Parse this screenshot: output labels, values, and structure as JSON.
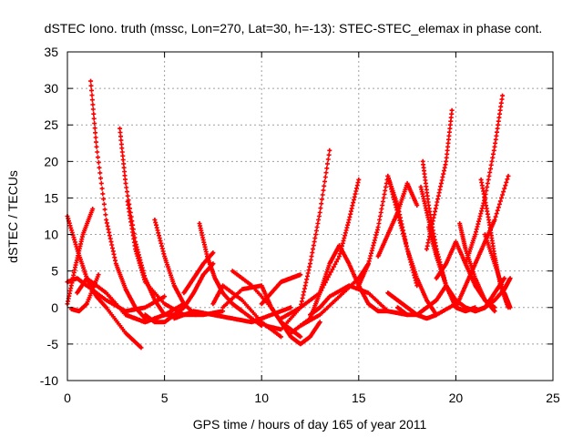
{
  "chart_data": {
    "type": "scatter",
    "title": "dSTEC Iono. truth (mssc, Lon=270, Lat=30, h=-13): STEC-STEC_elemax in phase cont.",
    "xlabel": "GPS time / hours of day 165 of year 2011",
    "ylabel": "dSTEC  / TECUs",
    "xlim": [
      0,
      25
    ],
    "ylim": [
      -10,
      35
    ],
    "xticks": [
      0,
      5,
      10,
      15,
      20,
      25
    ],
    "yticks": [
      -10,
      -5,
      0,
      5,
      10,
      15,
      20,
      25,
      30,
      35
    ],
    "grid": true,
    "marker": "+",
    "color": "#ff0000",
    "series": [
      {
        "x": [
          0.0,
          0.5,
          1.0,
          1.5,
          2.0,
          3.0,
          3.8
        ],
        "y": [
          12.5,
          8.0,
          4.0,
          1.5,
          0.0,
          -3.5,
          -5.5
        ]
      },
      {
        "x": [
          0.0,
          0.4,
          0.8,
          1.3
        ],
        "y": [
          0.5,
          5.5,
          10.0,
          13.5
        ]
      },
      {
        "x": [
          0.0,
          0.5,
          1.0,
          2.0,
          3.0,
          4.0,
          5.0
        ],
        "y": [
          3.5,
          4.0,
          3.0,
          1.0,
          -0.5,
          0.0,
          1.5
        ]
      },
      {
        "x": [
          1.2,
          1.5,
          2.0,
          2.5,
          3.0,
          3.5,
          4.0
        ],
        "y": [
          31.0,
          22.0,
          12.0,
          6.0,
          2.5,
          0.0,
          -1.5
        ]
      },
      {
        "x": [
          0.2,
          0.6,
          1.0,
          1.6
        ],
        "y": [
          -0.2,
          -0.5,
          0.5,
          4.5
        ]
      },
      {
        "x": [
          0.5,
          1.0,
          2.0,
          3.0,
          4.0,
          5.0,
          6.0
        ],
        "y": [
          2.0,
          4.0,
          2.0,
          -1.0,
          -2.0,
          -1.0,
          0.5
        ]
      },
      {
        "x": [
          2.7,
          3.0,
          3.5,
          4.0,
          4.5,
          5.0
        ],
        "y": [
          24.5,
          17.0,
          9.0,
          4.0,
          1.0,
          -1.0
        ]
      },
      {
        "x": [
          3.1,
          3.5,
          4.0,
          5.0,
          6.0
        ],
        "y": [
          14.5,
          8.0,
          3.5,
          0.5,
          -1.0
        ]
      },
      {
        "x": [
          2.0,
          3.0,
          4.0,
          5.0,
          6.0,
          7.0,
          8.0
        ],
        "y": [
          2.0,
          -1.0,
          -2.0,
          -1.0,
          -1.0,
          -1.0,
          -0.5
        ]
      },
      {
        "x": [
          4.5,
          5.0,
          5.5,
          6.0,
          6.6
        ],
        "y": [
          12.0,
          7.0,
          3.0,
          0.5,
          -1.0
        ]
      },
      {
        "x": [
          4.0,
          4.5,
          5.0,
          5.5,
          6.0,
          6.5,
          7.0,
          7.5
        ],
        "y": [
          -1.0,
          -2.0,
          -2.0,
          -1.0,
          0.0,
          2.0,
          4.5,
          6.0
        ]
      },
      {
        "x": [
          6.0,
          6.5,
          7.0,
          7.5
        ],
        "y": [
          2.0,
          4.0,
          6.0,
          7.5
        ]
      },
      {
        "x": [
          6.8,
          7.2,
          7.6,
          8.0,
          8.5,
          9.0,
          10.0
        ],
        "y": [
          11.5,
          7.0,
          4.0,
          2.0,
          0.5,
          -0.5,
          -2.5
        ]
      },
      {
        "x": [
          5.5,
          6.5,
          7.5,
          8.5,
          9.5,
          10.5,
          11.5
        ],
        "y": [
          -1.5,
          -0.5,
          -1.0,
          -1.5,
          -2.0,
          -1.0,
          0.0
        ]
      },
      {
        "x": [
          7.5,
          8.0,
          9.0,
          10.0,
          11.0
        ],
        "y": [
          0.5,
          3.0,
          1.0,
          -2.0,
          -4.0
        ]
      },
      {
        "x": [
          8.0,
          9.0,
          10.0,
          10.5,
          11.0,
          11.5,
          12.0
        ],
        "y": [
          0.0,
          2.5,
          3.0,
          0.0,
          -2.0,
          -3.0,
          -4.0
        ]
      },
      {
        "x": [
          8.5,
          9.5,
          10.5,
          11.0,
          11.5,
          12.0,
          12.5,
          13.0
        ],
        "y": [
          5.0,
          3.0,
          0.0,
          -2.0,
          -4.0,
          -5.0,
          -4.0,
          -2.0
        ]
      },
      {
        "x": [
          10.0,
          10.5,
          11.0,
          11.5,
          12.0
        ],
        "y": [
          0.5,
          2.0,
          3.5,
          4.0,
          4.5
        ]
      },
      {
        "x": [
          10.2,
          11.0,
          12.0,
          12.5,
          13.0,
          13.5
        ],
        "y": [
          -2.5,
          -3.0,
          0.0,
          6.0,
          13.0,
          21.5
        ]
      },
      {
        "x": [
          11.0,
          12.0,
          13.0,
          14.0,
          14.5,
          15.0
        ],
        "y": [
          -1.5,
          0.0,
          2.0,
          7.0,
          12.0,
          17.5
        ]
      },
      {
        "x": [
          12.0,
          13.0,
          14.0,
          15.0,
          15.5
        ],
        "y": [
          -2.5,
          -1.0,
          1.5,
          4.0,
          6.0
        ]
      },
      {
        "x": [
          11.5,
          12.5,
          13.0,
          13.5,
          14.0,
          14.5,
          15.0,
          15.5,
          16.0,
          16.5
        ],
        "y": [
          -3.5,
          -1.5,
          2.0,
          6.0,
          8.5,
          6.0,
          3.0,
          0.5,
          -0.5,
          -0.5
        ]
      },
      {
        "x": [
          12.5,
          13.0,
          13.5,
          14.5,
          15.5,
          16.5,
          17.5
        ],
        "y": [
          -1.0,
          0.0,
          1.5,
          3.0,
          2.0,
          -0.5,
          -1.0
        ]
      },
      {
        "x": [
          15.0,
          15.5,
          16.0,
          16.5,
          17.0,
          17.5,
          18.0
        ],
        "y": [
          3.0,
          6.0,
          11.0,
          18.0,
          14.0,
          8.0,
          3.0
        ]
      },
      {
        "x": [
          16.0,
          16.5,
          17.0,
          17.5,
          18.0
        ],
        "y": [
          7.0,
          10.0,
          13.0,
          17.0,
          14.0
        ]
      },
      {
        "x": [
          16.5,
          17.0,
          17.5,
          18.0,
          18.5,
          19.0
        ],
        "y": [
          18.0,
          13.0,
          8.0,
          4.0,
          1.0,
          -1.0
        ]
      },
      {
        "x": [
          16.5,
          17.0,
          17.5,
          18.0,
          18.5,
          19.0,
          20.0
        ],
        "y": [
          2.0,
          1.0,
          0.0,
          -1.0,
          -1.5,
          -1.0,
          0.5
        ]
      },
      {
        "x": [
          17.0,
          17.5,
          18.0,
          18.5,
          19.0,
          19.5
        ],
        "y": [
          0.0,
          -1.0,
          -1.0,
          0.0,
          1.0,
          3.0
        ]
      },
      {
        "x": [
          18.3,
          18.6,
          19.0,
          19.5,
          20.0
        ],
        "y": [
          20.0,
          14.0,
          8.0,
          3.0,
          0.5
        ]
      },
      {
        "x": [
          18.2,
          18.6,
          19.0,
          19.5
        ],
        "y": [
          16.5,
          12.0,
          7.5,
          3.0
        ]
      },
      {
        "x": [
          18.5,
          19.0,
          19.5,
          19.8
        ],
        "y": [
          8.0,
          14.0,
          20.0,
          27.0
        ]
      },
      {
        "x": [
          18.6,
          19.0,
          19.5,
          20.0,
          20.5,
          21.0
        ],
        "y": [
          11.0,
          7.0,
          3.0,
          0.0,
          -0.5,
          0.0
        ]
      },
      {
        "x": [
          19.5,
          20.0,
          20.5,
          21.0,
          21.5,
          22.0,
          22.5
        ],
        "y": [
          3.0,
          1.0,
          0.0,
          -0.5,
          0.0,
          2.0,
          4.0
        ]
      },
      {
        "x": [
          20.2,
          20.5,
          21.0,
          21.5,
          22.0
        ],
        "y": [
          11.5,
          8.0,
          4.0,
          1.0,
          -0.5
        ]
      },
      {
        "x": [
          20.5,
          21.0,
          21.5,
          22.0,
          22.4
        ],
        "y": [
          6.0,
          10.0,
          15.0,
          22.0,
          29.0
        ]
      },
      {
        "x": [
          20.0,
          20.5,
          21.0,
          21.5,
          22.0,
          22.7
        ],
        "y": [
          0.0,
          3.0,
          6.0,
          9.0,
          12.0,
          18.0
        ]
      },
      {
        "x": [
          21.3,
          21.7,
          22.0,
          22.3,
          22.7
        ],
        "y": [
          17.5,
          12.0,
          7.0,
          3.0,
          0.0
        ]
      },
      {
        "x": [
          21.5,
          22.0,
          22.5,
          22.8
        ],
        "y": [
          10.0,
          6.0,
          2.0,
          0.0
        ]
      },
      {
        "x": [
          21.0,
          21.5,
          22.0,
          22.5,
          22.8
        ],
        "y": [
          -0.5,
          0.0,
          1.0,
          2.5,
          4.0
        ]
      },
      {
        "x": [
          19.0,
          19.5,
          20.0,
          20.5,
          21.0,
          21.5,
          22.0
        ],
        "y": [
          4.0,
          6.0,
          9.0,
          6.0,
          3.0,
          1.0,
          0.0
        ]
      }
    ]
  }
}
